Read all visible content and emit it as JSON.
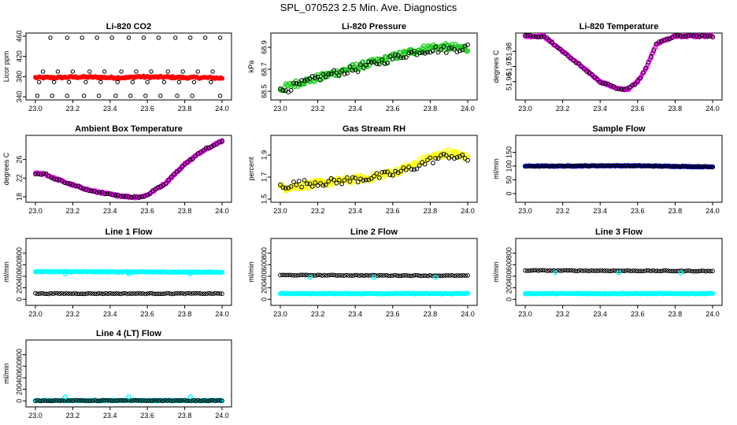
{
  "figure_title": "SPL_070523  2.5 Min. Ave. Diagnostics",
  "colors": {
    "red": "#ff0000",
    "green": "#22cc22",
    "magenta": "#ff00ff",
    "yellow": "#ffff00",
    "blue": "#0000ff",
    "cyan": "#00ffff",
    "black": "#000000"
  },
  "chart_data": [
    {
      "id": "co2",
      "type": "scatter",
      "title": "Li-820 CO2",
      "ylabel": "Licor ppm",
      "xlim": [
        23.0,
        24.0
      ],
      "ylim": [
        340,
        460
      ],
      "xticks": [
        "23.0",
        "23.2",
        "23.4",
        "23.6",
        "23.8",
        "24.0"
      ],
      "yticks": [
        "340",
        "380",
        "420",
        "460"
      ],
      "series": [
        {
          "name": "ave",
          "color": "red",
          "kind": "band",
          "x": [
            23.0,
            23.1,
            23.2,
            23.3,
            23.4,
            23.5,
            23.55,
            23.6,
            23.7,
            23.8,
            23.9,
            24.0
          ],
          "y": [
            378,
            378,
            379,
            379,
            378,
            378,
            380,
            379,
            379,
            378,
            378,
            377
          ]
        },
        {
          "name": "max",
          "color": "black",
          "kind": "points",
          "x": [
            23.08,
            23.17,
            23.25,
            23.33,
            23.41,
            23.5,
            23.58,
            23.66,
            23.75,
            23.83,
            23.91,
            23.99
          ],
          "y": [
            457,
            457,
            457,
            457,
            457,
            457,
            457,
            457,
            457,
            457,
            457,
            457
          ]
        },
        {
          "name": "hi",
          "color": "black",
          "kind": "points",
          "x": [
            23.04,
            23.12,
            23.2,
            23.29,
            23.37,
            23.46,
            23.54,
            23.62,
            23.71,
            23.79,
            23.87,
            23.95
          ],
          "y": [
            390,
            390,
            390,
            390,
            390,
            390,
            390,
            390,
            390,
            390,
            390,
            390
          ]
        },
        {
          "name": "lo",
          "color": "black",
          "kind": "points",
          "x": [
            23.02,
            23.1,
            23.18,
            23.27,
            23.35,
            23.44,
            23.52,
            23.6,
            23.69,
            23.77,
            23.85,
            23.94
          ],
          "y": [
            369,
            369,
            369,
            369,
            369,
            369,
            369,
            369,
            369,
            369,
            369,
            369
          ]
        },
        {
          "name": "min",
          "color": "black",
          "kind": "points",
          "x": [
            23.01,
            23.09,
            23.17,
            23.26,
            23.34,
            23.43,
            23.51,
            23.59,
            23.67,
            23.76,
            23.84,
            23.99
          ],
          "y": [
            342,
            342,
            342,
            342,
            342,
            342,
            342,
            342,
            342,
            342,
            342,
            342
          ]
        }
      ]
    },
    {
      "id": "pressure",
      "type": "scatter",
      "title": "Li-820 Pressure",
      "ylabel": "kPa",
      "xlim": [
        23.0,
        24.0
      ],
      "ylim": [
        68.45,
        69.0
      ],
      "xticks": [
        "23.0",
        "23.2",
        "23.4",
        "23.6",
        "23.8",
        "24.0"
      ],
      "yticks": [
        "68.5",
        "68.7",
        "68.9"
      ],
      "series": [
        {
          "name": "ave",
          "color": "green",
          "kind": "trend",
          "x": [
            23.0,
            23.1,
            23.2,
            23.3,
            23.4,
            23.5,
            23.6,
            23.7,
            23.8,
            23.9,
            24.0
          ],
          "y": [
            68.52,
            68.58,
            68.62,
            68.67,
            68.72,
            68.76,
            68.81,
            68.86,
            68.9,
            68.9,
            68.89
          ]
        },
        {
          "name": "pts",
          "color": "black",
          "kind": "trend",
          "x": [
            23.0,
            23.1,
            23.2,
            23.3,
            23.4,
            23.5,
            23.6,
            23.7,
            23.8,
            23.9,
            24.0
          ],
          "y": [
            68.5,
            68.56,
            68.62,
            68.67,
            68.7,
            68.75,
            68.8,
            68.85,
            68.88,
            68.88,
            68.9
          ]
        }
      ]
    },
    {
      "id": "temperature",
      "type": "scatter",
      "title": "Li-820 Temperature",
      "ylabel": "degrees C",
      "xlim": [
        23.0,
        24.0
      ],
      "ylim": [
        51.95,
        51.99
      ],
      "xticks": [
        "23.0",
        "23.2",
        "23.4",
        "23.6",
        "23.8",
        "24.0"
      ],
      "yticks": [
        "51.96",
        "51.97",
        "51.98"
      ],
      "series": [
        {
          "name": "ave",
          "color": "magenta",
          "kind": "trend",
          "x": [
            23.0,
            23.1,
            23.15,
            23.2,
            23.3,
            23.4,
            23.5,
            23.55,
            23.6,
            23.65,
            23.7,
            23.8,
            23.9,
            24.0
          ],
          "y": [
            51.99,
            51.99,
            51.985,
            51.98,
            51.97,
            51.96,
            51.955,
            51.955,
            51.96,
            51.97,
            51.985,
            51.99,
            51.99,
            51.99
          ]
        },
        {
          "name": "pts",
          "color": "black",
          "kind": "trend",
          "x": [
            23.0,
            23.1,
            23.15,
            23.2,
            23.3,
            23.4,
            23.5,
            23.55,
            23.6,
            23.65,
            23.7,
            23.8,
            23.9,
            24.0
          ],
          "y": [
            51.99,
            51.99,
            51.985,
            51.98,
            51.97,
            51.96,
            51.955,
            51.955,
            51.96,
            51.97,
            51.985,
            51.99,
            51.99,
            51.99
          ]
        }
      ]
    },
    {
      "id": "ambient",
      "type": "scatter",
      "title": "Ambient Box Temperature",
      "ylabel": "degrees C",
      "xlim": [
        23.0,
        24.0
      ],
      "ylim": [
        17.5,
        30.5
      ],
      "xticks": [
        "23.0",
        "23.2",
        "23.4",
        "23.6",
        "23.8",
        "24.0"
      ],
      "yticks": [
        "18",
        "22",
        "26"
      ],
      "series": [
        {
          "name": "ave",
          "color": "magenta",
          "kind": "trend",
          "x": [
            23.0,
            23.05,
            23.1,
            23.2,
            23.3,
            23.4,
            23.5,
            23.55,
            23.6,
            23.7,
            23.8,
            23.9,
            24.0
          ],
          "y": [
            23.0,
            22.9,
            22.0,
            20.5,
            19.3,
            18.5,
            18.0,
            17.9,
            18.4,
            21.0,
            25.0,
            28.0,
            30.0
          ]
        },
        {
          "name": "pts",
          "color": "black",
          "kind": "trend",
          "x": [
            23.0,
            23.05,
            23.1,
            23.2,
            23.3,
            23.4,
            23.5,
            23.55,
            23.6,
            23.7,
            23.8,
            23.9,
            24.0
          ],
          "y": [
            23.0,
            22.9,
            22.0,
            20.5,
            19.3,
            18.5,
            18.0,
            17.9,
            18.4,
            21.0,
            25.0,
            28.0,
            30.0
          ]
        }
      ]
    },
    {
      "id": "rh",
      "type": "scatter",
      "title": "Gas Stream RH",
      "ylabel": "percent",
      "xlim": [
        23.0,
        24.0
      ],
      "ylim": [
        1.5,
        2.05
      ],
      "xticks": [
        "23.0",
        "23.2",
        "23.4",
        "23.6",
        "23.8",
        "24.0"
      ],
      "yticks": [
        "1.5",
        "1.7",
        "1.9"
      ],
      "series": [
        {
          "name": "ave",
          "color": "yellow",
          "kind": "trend",
          "x": [
            23.0,
            23.1,
            23.2,
            23.3,
            23.4,
            23.5,
            23.6,
            23.7,
            23.8,
            23.9,
            24.0
          ],
          "y": [
            1.6,
            1.62,
            1.64,
            1.66,
            1.68,
            1.7,
            1.74,
            1.8,
            1.88,
            1.92,
            1.88
          ]
        },
        {
          "name": "pts",
          "color": "black",
          "kind": "trend",
          "x": [
            23.0,
            23.1,
            23.2,
            23.3,
            23.4,
            23.5,
            23.6,
            23.7,
            23.8,
            23.9,
            24.0
          ],
          "y": [
            1.62,
            1.64,
            1.65,
            1.66,
            1.68,
            1.7,
            1.73,
            1.78,
            1.85,
            1.9,
            1.86
          ]
        }
      ]
    },
    {
      "id": "sample",
      "type": "scatter",
      "title": "Sample Flow",
      "ylabel": "ml/min",
      "xlim": [
        23.0,
        24.0
      ],
      "ylim": [
        -20,
        200
      ],
      "xticks": [
        "23.0",
        "23.2",
        "23.4",
        "23.6",
        "23.8",
        "24.0"
      ],
      "yticks": [
        "0",
        "50",
        "100",
        "150"
      ],
      "series": [
        {
          "name": "ave",
          "color": "blue",
          "kind": "flat",
          "x": [
            23.0,
            23.2,
            23.4,
            23.6,
            23.8,
            24.0
          ],
          "y": [
            100,
            100,
            101,
            101,
            99,
            97
          ]
        },
        {
          "name": "pts",
          "color": "black",
          "kind": "flat",
          "x": [
            23.0,
            23.2,
            23.4,
            23.6,
            23.8,
            24.0
          ],
          "y": [
            100,
            100,
            101,
            101,
            99,
            97
          ]
        }
      ]
    },
    {
      "id": "line1",
      "type": "scatter",
      "title": "Line 1 Flow",
      "ylabel": "ml/min",
      "xlim": [
        23.0,
        24.0
      ],
      "ylim": [
        -50,
        1000
      ],
      "xticks": [
        "23.0",
        "23.2",
        "23.4",
        "23.6",
        "23.8",
        "24.0"
      ],
      "yticks": [
        "0",
        "200",
        "400",
        "600",
        "800"
      ],
      "series": [
        {
          "name": "hi",
          "color": "cyan",
          "kind": "flat",
          "x": [
            23.0,
            24.0
          ],
          "y": [
            480,
            470
          ]
        },
        {
          "name": "lo",
          "color": "black",
          "kind": "flat",
          "x": [
            23.0,
            24.0
          ],
          "y": [
            100,
            100
          ]
        }
      ],
      "outliers": {
        "color": "cyan",
        "x": [
          23.16,
          23.5,
          23.83
        ],
        "y": [
          440,
          440,
          440
        ]
      }
    },
    {
      "id": "line2",
      "type": "scatter",
      "title": "Line 2 Flow",
      "ylabel": "ml/min",
      "xlim": [
        23.0,
        24.0
      ],
      "ylim": [
        -50,
        1000
      ],
      "xticks": [
        "23.0",
        "23.2",
        "23.4",
        "23.6",
        "23.8",
        "24.0"
      ],
      "yticks": [
        "0",
        "200",
        "400",
        "600",
        "800"
      ],
      "series": [
        {
          "name": "hi",
          "color": "black",
          "kind": "flat",
          "x": [
            23.0,
            24.0
          ],
          "y": [
            420,
            410
          ]
        },
        {
          "name": "lo",
          "color": "cyan",
          "kind": "flat",
          "x": [
            23.0,
            24.0
          ],
          "y": [
            100,
            100
          ]
        }
      ],
      "outliers": {
        "color": "cyan",
        "x": [
          23.16,
          23.5,
          23.83
        ],
        "y": [
          380,
          380,
          380
        ]
      }
    },
    {
      "id": "line3",
      "type": "scatter",
      "title": "Line 3 Flow",
      "ylabel": "ml/min",
      "xlim": [
        23.0,
        24.0
      ],
      "ylim": [
        -50,
        1000
      ],
      "xticks": [
        "23.0",
        "23.2",
        "23.4",
        "23.6",
        "23.8",
        "24.0"
      ],
      "yticks": [
        "0",
        "200",
        "400",
        "600",
        "800"
      ],
      "series": [
        {
          "name": "hi",
          "color": "black",
          "kind": "flat",
          "x": [
            23.0,
            24.0
          ],
          "y": [
            500,
            490
          ]
        },
        {
          "name": "lo",
          "color": "cyan",
          "kind": "flat",
          "x": [
            23.0,
            24.0
          ],
          "y": [
            100,
            100
          ]
        }
      ],
      "outliers": {
        "color": "cyan",
        "x": [
          23.16,
          23.5,
          23.83
        ],
        "y": [
          460,
          460,
          460
        ]
      }
    },
    {
      "id": "line4",
      "type": "scatter",
      "title": "Line 4 (LT) Flow",
      "ylabel": "ml/min",
      "xlim": [
        23.0,
        24.0
      ],
      "ylim": [
        -50,
        1000
      ],
      "xticks": [
        "23.0",
        "23.2",
        "23.4",
        "23.6",
        "23.8",
        "24.0"
      ],
      "yticks": [
        "0",
        "200",
        "400",
        "600",
        "800"
      ],
      "series": [
        {
          "name": "lo",
          "color": "cyan",
          "kind": "flat",
          "x": [
            23.0,
            24.0
          ],
          "y": [
            5,
            5
          ]
        },
        {
          "name": "pts",
          "color": "black",
          "kind": "flat",
          "x": [
            23.0,
            24.0
          ],
          "y": [
            5,
            5
          ]
        }
      ],
      "outliers": {
        "color": "cyan",
        "x": [
          23.16,
          23.5,
          23.83
        ],
        "y": [
          70,
          70,
          70
        ]
      }
    }
  ]
}
